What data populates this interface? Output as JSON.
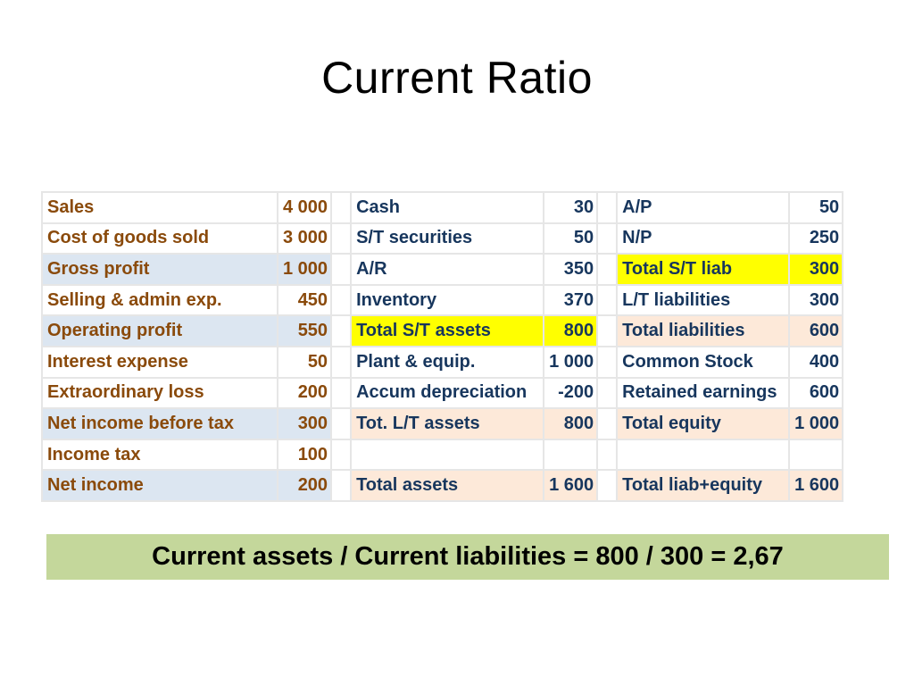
{
  "slide": {
    "title": "Current Ratio",
    "formula": "Current assets / Current liabilities = 800 / 300 = 2,67"
  },
  "colors": {
    "income_text": "#8a4a0b",
    "balance_text": "#17365d",
    "highlight_blue": "#dce6f1",
    "highlight_yellow": "#ffff00",
    "highlight_peach": "#fde9d9",
    "formula_background": "#c4d79b"
  },
  "table": {
    "rows": [
      {
        "income": {
          "label": "Sales",
          "value": "4 000"
        },
        "assets": {
          "label": "Cash",
          "value": "30"
        },
        "liab": {
          "label": "A/P",
          "value": "50"
        }
      },
      {
        "income": {
          "label": "Cost of goods sold",
          "value": "3 000"
        },
        "assets": {
          "label": "S/T securities",
          "value": "50"
        },
        "liab": {
          "label": "N/P",
          "value": "250"
        }
      },
      {
        "income": {
          "label": "Gross profit",
          "value": "1 000"
        },
        "assets": {
          "label": "A/R",
          "value": "350"
        },
        "liab": {
          "label": "Total S/T liab",
          "value": "300"
        }
      },
      {
        "income": {
          "label": "Selling & admin exp.",
          "value": "450"
        },
        "assets": {
          "label": "Inventory",
          "value": "370"
        },
        "liab": {
          "label": "L/T liabilities",
          "value": "300"
        }
      },
      {
        "income": {
          "label": "Operating profit",
          "value": "550"
        },
        "assets": {
          "label": "Total S/T assets",
          "value": "800"
        },
        "liab": {
          "label": "Total liabilities",
          "value": "600"
        }
      },
      {
        "income": {
          "label": "Interest expense",
          "value": "50"
        },
        "assets": {
          "label": "Plant & equip.",
          "value": "1 000"
        },
        "liab": {
          "label": "Common Stock",
          "value": "400"
        }
      },
      {
        "income": {
          "label": "Extraordinary loss",
          "value": "200"
        },
        "assets": {
          "label": "Accum depreciation",
          "value": "-200"
        },
        "liab": {
          "label": "Retained earnings",
          "value": "600"
        }
      },
      {
        "income": {
          "label": "Net income before tax",
          "value": "300"
        },
        "assets": {
          "label": "Tot. L/T assets",
          "value": "800"
        },
        "liab": {
          "label": "Total equity",
          "value": "1 000"
        }
      },
      {
        "income": {
          "label": "Income tax",
          "value": "100"
        },
        "assets": {
          "label": "",
          "value": ""
        },
        "liab": {
          "label": "",
          "value": ""
        }
      },
      {
        "income": {
          "label": "Net income",
          "value": "200"
        },
        "assets": {
          "label": "Total assets",
          "value": "1 600"
        },
        "liab": {
          "label": "Total liab+equity",
          "value": "1 600"
        }
      }
    ]
  }
}
